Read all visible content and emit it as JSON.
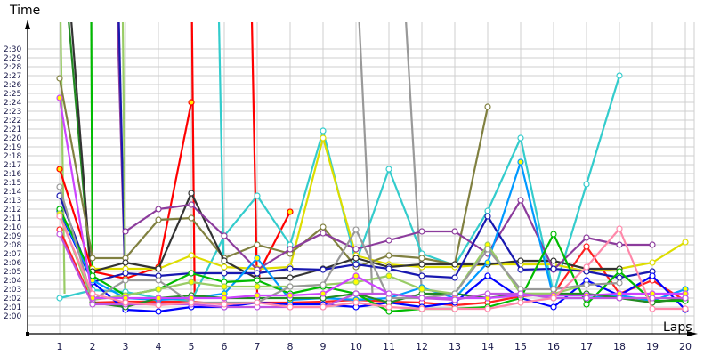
{
  "chart_data": {
    "type": "line",
    "title": "",
    "ylabel": "Time",
    "xlabel": "Laps",
    "x": [
      1,
      2,
      3,
      4,
      5,
      6,
      7,
      8,
      9,
      10,
      11,
      12,
      13,
      14,
      15,
      16,
      17,
      18,
      19,
      20
    ],
    "y_ticks": [
      "2:00",
      "2:01",
      "2:02",
      "2:03",
      "2:04",
      "2:05",
      "2:06",
      "2:07",
      "2:08",
      "2:09",
      "2:10",
      "2:11",
      "2:12",
      "2:13",
      "2:14",
      "2:15",
      "2:16",
      "2:17",
      "2:18",
      "2:19",
      "2:20",
      "2:21",
      "2:22",
      "2:23",
      "2:24",
      "2:25",
      "2:26",
      "2:27",
      "2:28",
      "2:29",
      "2:30"
    ],
    "ylim_seconds": [
      120,
      150
    ],
    "grid": true,
    "legend": "none",
    "series": [
      {
        "name": "red",
        "color": "#ff0000",
        "marker_fill": "#ffee00",
        "values": [
          136.5,
          125.0,
          124.2,
          125.5,
          144.0,
          null,
          null,
          null,
          null,
          null,
          null,
          null,
          null,
          null,
          null,
          null,
          null,
          null,
          null,
          null
        ]
      },
      {
        "name": "red-2",
        "color": "#ff0000",
        "marker_fill": "#ffee00",
        "values": [
          null,
          null,
          null,
          null,
          null,
          null,
          124.5,
          131.7,
          null,
          null,
          null,
          null,
          null,
          null,
          null,
          null,
          null,
          null,
          null,
          null
        ]
      },
      {
        "name": "red-3",
        "color": "#ff2020",
        "marker_fill": "#ffffff",
        "values": [
          129.7,
          121.5,
          121.6,
          121.6,
          121.6,
          121.3,
          121.5,
          121.5,
          121.6,
          121.8,
          121.6,
          121.5,
          121.2,
          121.5,
          122.2,
          122.5,
          127.8,
          122.5,
          124.0,
          121.7
        ]
      },
      {
        "name": "cyan",
        "color": "#33cccc",
        "marker_fill": "#ffffff",
        "values": [
          122.0,
          122.9,
          122.7,
          122.0,
          121.7,
          129.0,
          133.5,
          128.0,
          140.8,
          126.0,
          136.5,
          127.0,
          125.7,
          131.8,
          140.0,
          122.5,
          134.8,
          147.0,
          null,
          null
        ]
      },
      {
        "name": "yellow",
        "color": "#dddd00",
        "marker_fill": "#ffffff",
        "values": [
          null,
          125.3,
          125.3,
          125.3,
          126.8,
          125.5,
          125.3,
          125.5,
          140.0,
          126.8,
          125.8,
          125.5,
          125.5,
          125.8,
          125.8,
          125.8,
          125.0,
          125.3,
          126.0,
          128.3
        ]
      },
      {
        "name": "olive",
        "color": "#808040",
        "marker_fill": "#ffffff",
        "values": [
          146.7,
          126.5,
          126.5,
          130.8,
          131.0,
          126.5,
          128.0,
          127.0,
          130.0,
          125.5,
          126.8,
          126.5,
          125.8,
          143.5,
          null,
          null,
          null,
          null,
          null,
          null
        ]
      },
      {
        "name": "dark-gray",
        "color": "#333333",
        "marker_fill": "#ffffff",
        "values": [
          null,
          125.0,
          126.0,
          125.3,
          133.8,
          126.2,
          124.2,
          124.3,
          125.3,
          126.5,
          125.5,
          125.8,
          125.8,
          125.8,
          126.2,
          126.2,
          125.3,
          125.3,
          null,
          null
        ]
      },
      {
        "name": "purple",
        "color": "#8c3c9c",
        "marker_fill": "#ffffff",
        "values": [
          null,
          null,
          129.5,
          132.0,
          132.5,
          129.0,
          125.2,
          127.5,
          129.3,
          127.5,
          128.5,
          129.5,
          129.5,
          127.0,
          133.0,
          125.2,
          128.8,
          128.0,
          128.0,
          null
        ]
      },
      {
        "name": "navy",
        "color": "#1818b0",
        "marker_fill": "#ffffff",
        "values": [
          133.5,
          123.8,
          124.8,
          124.5,
          124.8,
          124.8,
          124.8,
          125.3,
          125.2,
          125.8,
          125.3,
          124.5,
          124.3,
          131.2,
          125.2,
          125.3,
          125.0,
          124.3,
          125.0,
          null
        ]
      },
      {
        "name": "blue",
        "color": "#0000ff",
        "marker_fill": "#ffffff",
        "values": [
          131.8,
          123.8,
          120.7,
          120.5,
          121.0,
          121.0,
          121.5,
          121.3,
          121.3,
          121.0,
          121.5,
          121.0,
          121.5,
          124.5,
          122.0,
          121.0,
          124.0,
          122.3,
          124.5,
          120.7
        ]
      },
      {
        "name": "sky-blue",
        "color": "#0099ff",
        "marker_fill": "#ffff00",
        "values": [
          132.0,
          124.0,
          122.0,
          121.8,
          122.0,
          122.5,
          126.5,
          121.8,
          122.0,
          121.8,
          122.0,
          123.2,
          122.0,
          126.0,
          137.3,
          122.0,
          122.0,
          122.3,
          121.7,
          123.0
        ]
      },
      {
        "name": "green",
        "color": "#00bb00",
        "marker_fill": "#ffffff",
        "values": [
          132.0,
          124.5,
          122.3,
          123.0,
          124.8,
          123.8,
          124.0,
          122.5,
          123.3,
          122.5,
          120.5,
          120.8,
          120.8,
          121.0,
          122.0,
          129.2,
          121.3,
          125.0,
          121.7,
          121.7
        ]
      },
      {
        "name": "dark-green",
        "color": "#228b22",
        "marker_fill": "#ffffff",
        "values": [
          null,
          121.5,
          121.0,
          122.0,
          122.3,
          122.0,
          122.0,
          122.0,
          122.0,
          122.5,
          121.5,
          122.5,
          122.5,
          122.0,
          122.5,
          122.5,
          122.5,
          122.0,
          121.5,
          122.0
        ]
      },
      {
        "name": "light-green",
        "color": "#99cc66",
        "marker_fill": "#ffff00",
        "values": [
          131.5,
          121.8,
          122.3,
          123.0,
          123.8,
          123.3,
          123.3,
          123.3,
          123.5,
          123.8,
          124.5,
          123.0,
          122.5,
          128.0,
          122.5,
          122.5,
          123.5,
          null,
          null,
          null
        ]
      },
      {
        "name": "gray",
        "color": "#999999",
        "marker_fill": "#ffffff",
        "values": [
          134.5,
          121.8,
          124.0,
          124.0,
          121.5,
          121.5,
          121.5,
          123.3,
          123.5,
          129.7,
          122.0,
          122.0,
          122.5,
          127.5,
          123.0,
          123.0,
          123.5,
          123.7,
          null,
          null
        ]
      },
      {
        "name": "magenta",
        "color": "#cc44ff",
        "marker_fill": "#ffff00",
        "values": [
          144.5,
          122.0,
          122.0,
          122.0,
          122.0,
          122.0,
          122.3,
          122.3,
          122.5,
          124.5,
          122.5,
          122.0,
          122.0,
          122.0,
          122.3,
          122.3,
          122.3,
          122.5,
          122.5,
          122.5
        ]
      },
      {
        "name": "violet",
        "color": "#c055e0",
        "marker_fill": "#ffffff",
        "values": [
          129.2,
          121.3,
          121.3,
          121.3,
          121.3,
          121.0,
          121.0,
          121.0,
          121.0,
          122.5,
          122.5,
          122.0,
          121.8,
          122.5,
          122.5,
          122.0,
          122.0,
          122.0,
          122.0,
          122.0
        ]
      },
      {
        "name": "pink",
        "color": "#ff88aa",
        "marker_fill": "#ffffff",
        "values": [
          131.2,
          122.5,
          121.5,
          121.2,
          121.5,
          121.3,
          121.5,
          121.0,
          121.0,
          121.5,
          121.0,
          120.8,
          120.8,
          120.8,
          121.5,
          122.0,
          125.5,
          129.8,
          120.8,
          120.8
        ]
      }
    ],
    "offscreen_lines": [
      {
        "color": "#99cc66",
        "from_lap": 1,
        "to_lap": 1.15
      },
      {
        "color": "#228b22",
        "from_lap": 1.1,
        "to_lap": 2
      },
      {
        "color": "#333333",
        "from_lap": 1.2,
        "to_lap": 2
      },
      {
        "color": "#00bb00",
        "from_lap": 1.95,
        "to_lap": 2
      },
      {
        "color": "#8c3c9c",
        "from_lap": 2.7,
        "to_lap": 3
      },
      {
        "color": "#1818b0",
        "from_lap": 2.75,
        "to_lap": 3
      },
      {
        "color": "#99cc66",
        "from_lap": 2.9,
        "to_lap": 3
      },
      {
        "color": "#ff0000",
        "from_lap": 5,
        "to_lap": 5.1
      },
      {
        "color": "#33cccc",
        "from_lap": 5.8,
        "to_lap": 6
      },
      {
        "color": "#ff0000",
        "from_lap": 6.8,
        "to_lap": 7
      },
      {
        "color": "#999999",
        "from_lap": 10,
        "to_lap": 10.5
      },
      {
        "color": "#999999",
        "from_lap": 11.4,
        "to_lap": 12
      }
    ]
  }
}
